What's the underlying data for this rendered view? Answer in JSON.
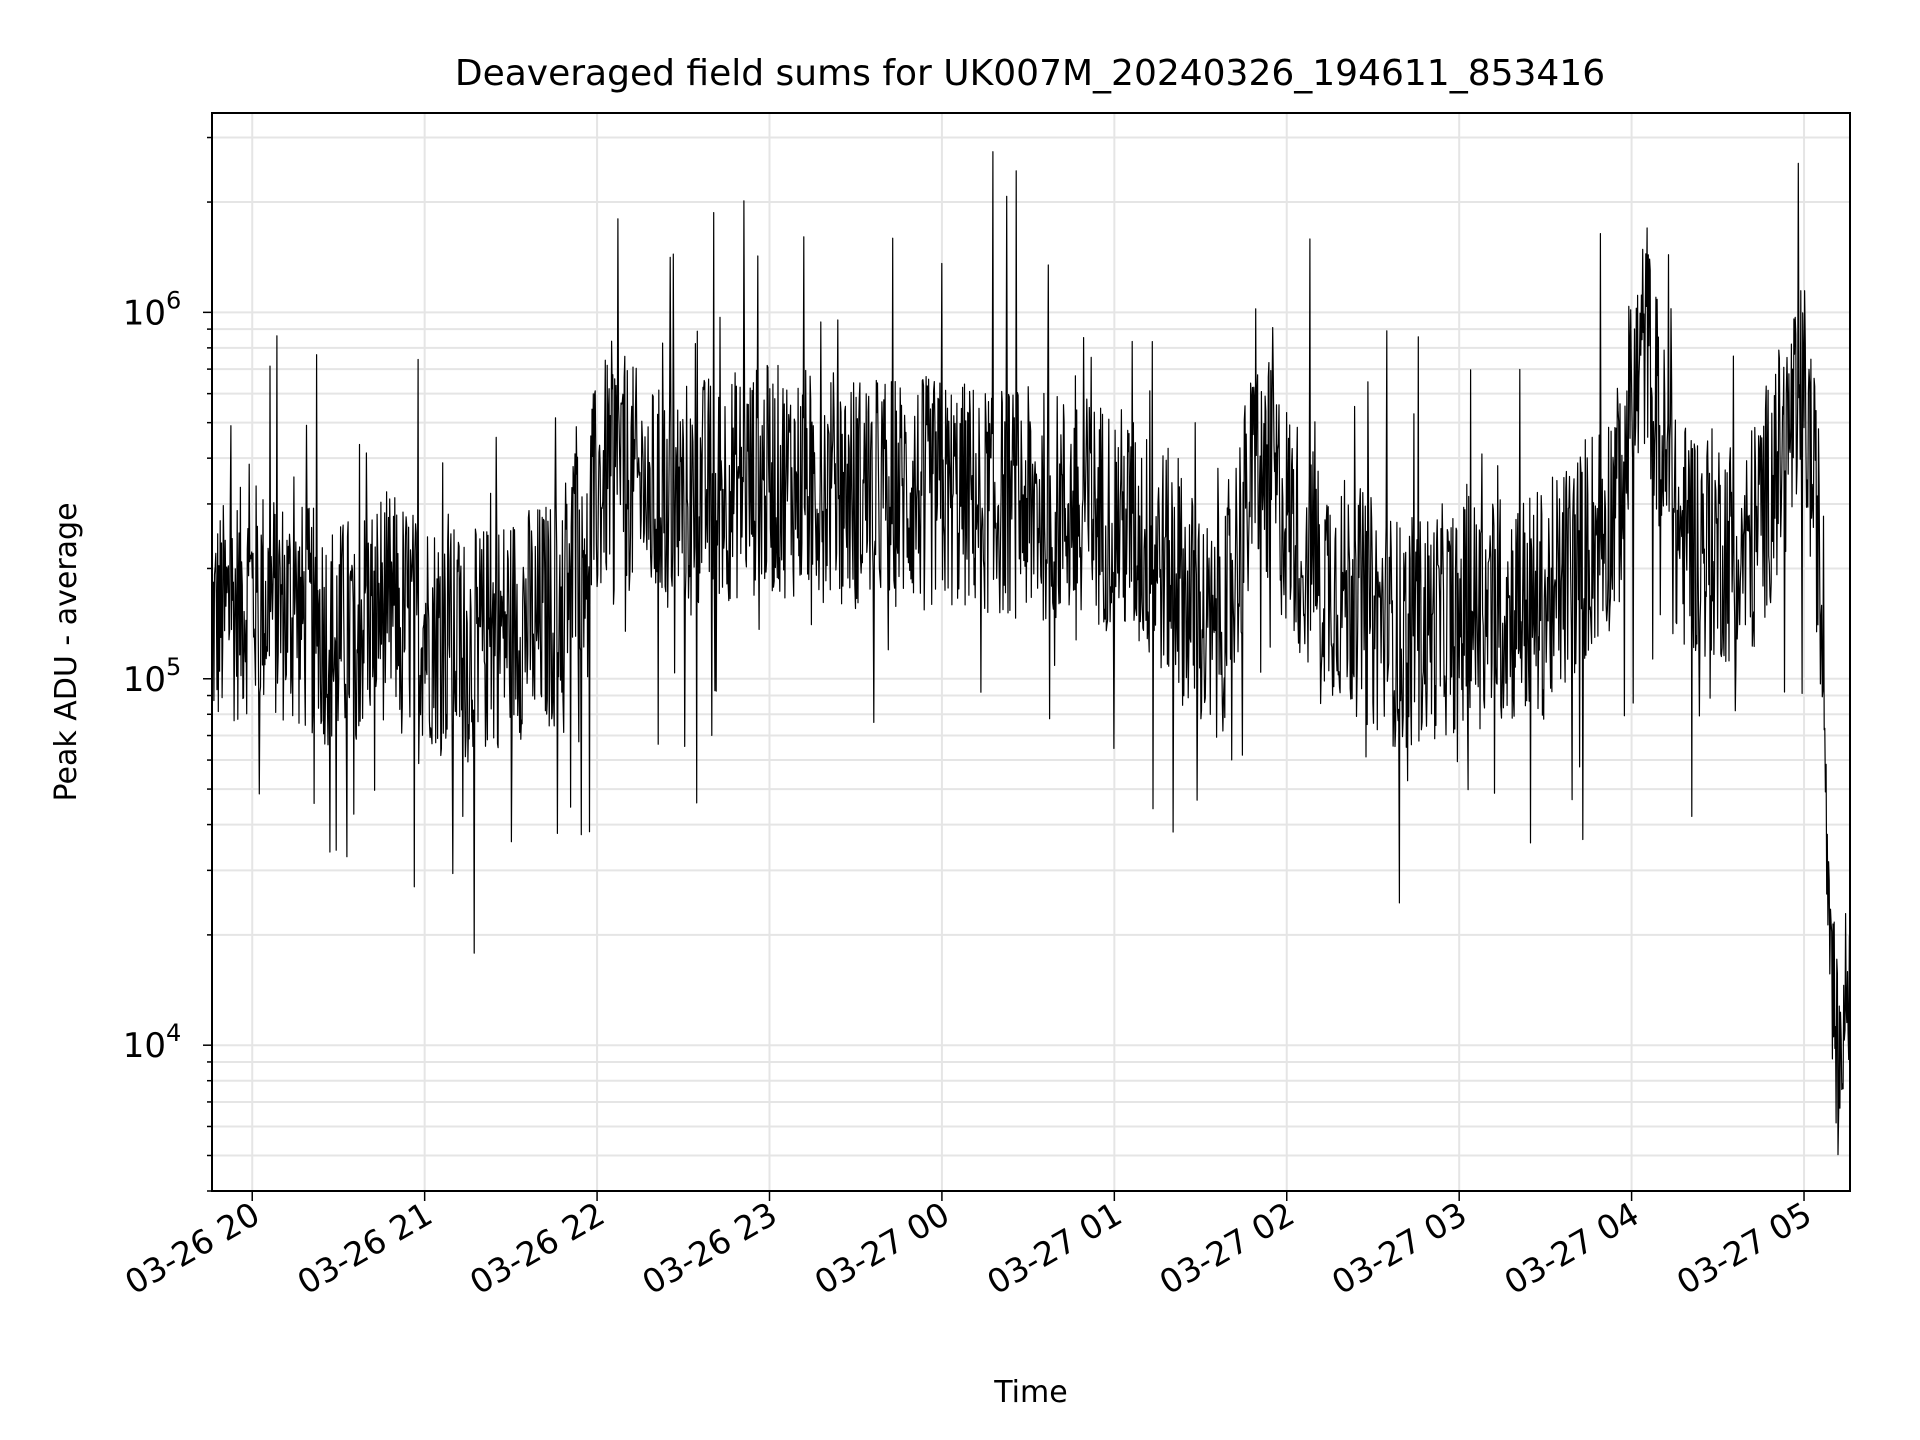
{
  "chart_data": {
    "type": "line",
    "title": "Deaveraged field sums for UK007M_20240326_194611_853416",
    "xlabel": "Time",
    "ylabel": "Peak ADU - average",
    "yscale": "log",
    "ylim": [
      4000,
      3500000
    ],
    "xlim": [
      "2024-03-26 19:46",
      "2024-03-27 05:16"
    ],
    "grid": true,
    "line_color": "#000000",
    "x_tick_labels": [
      "03-26 20",
      "03-26 21",
      "03-26 22",
      "03-26 23",
      "03-27 00",
      "03-27 01",
      "03-27 02",
      "03-27 03",
      "03-27 04",
      "03-27 05"
    ],
    "y_tick_labels": [
      "10^4",
      "10^5",
      "10^6"
    ],
    "series": [
      {
        "x": [
          "2024-03-26 19:46",
          "2024-03-26 20:00",
          "2024-03-26 20:15",
          "2024-03-26 20:30",
          "2024-03-26 20:45",
          "2024-03-26 21:00",
          "2024-03-26 21:15",
          "2024-03-26 21:30",
          "2024-03-26 21:45",
          "2024-03-26 22:05",
          "2024-03-26 22:20",
          "2024-03-26 22:40",
          "2024-03-26 23:00",
          "2024-03-26 23:30",
          "2024-03-27 00:00",
          "2024-03-27 00:30",
          "2024-03-27 01:00",
          "2024-03-27 01:20",
          "2024-03-27 01:35",
          "2024-03-27 01:50",
          "2024-03-27 02:10",
          "2024-03-27 02:40",
          "2024-03-27 03:00",
          "2024-03-27 03:30",
          "2024-03-27 03:55",
          "2024-03-27 04:05",
          "2024-03-27 04:15",
          "2024-03-27 04:40",
          "2024-03-27 05:00",
          "2024-03-27 05:05",
          "2024-03-27 05:08",
          "2024-03-27 05:10",
          "2024-03-27 05:12",
          "2024-03-27 05:15"
        ],
        "y": [
          140000,
          170000,
          150000,
          130000,
          160000,
          140000,
          120000,
          140000,
          150000,
          400000,
          300000,
          330000,
          350000,
          330000,
          320000,
          300000,
          280000,
          200000,
          120000,
          400000,
          200000,
          130000,
          150000,
          160000,
          300000,
          900000,
          250000,
          220000,
          600000,
          250000,
          45000,
          15000,
          8000,
          15000
        ]
      }
    ]
  }
}
